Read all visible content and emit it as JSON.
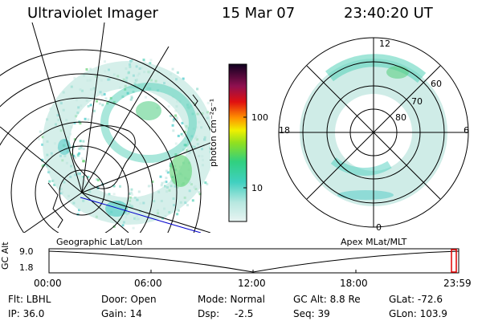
{
  "header": {
    "instrument": "Ultraviolet Imager",
    "date": "15 Mar 07",
    "time": "23:40:20 UT"
  },
  "panels": {
    "left_label": "Geographic Lat/Lon",
    "right_label": "Apex MLat/MLT"
  },
  "colorbar": {
    "unit_label": "photon cm⁻²s⁻¹",
    "ticks": [
      "100",
      "10"
    ]
  },
  "polar_plot": {
    "mlt_labels": [
      "12",
      "18",
      "6",
      "0"
    ],
    "lat_labels": [
      "60",
      "70",
      "80"
    ]
  },
  "altitude": {
    "axis_label": "GC Alt",
    "y_ticks": [
      "9.0",
      "1.8"
    ],
    "x_ticks": [
      "00:00",
      "06:00",
      "12:00",
      "18:00",
      "23:59"
    ]
  },
  "info": {
    "filter": "Flt: LBHL",
    "ip": "IP: 36.0",
    "door": "Door: Open",
    "gain": "Gain: 14",
    "mode": "Mode: Normal",
    "dsp_label": "Dsp:",
    "dsp_value": "-2.5",
    "gc_alt": "GC Alt: 8.8 Re",
    "seq": "Seq: 39",
    "glat": "GLat: -72.6",
    "glon": "GLon: 103.9"
  },
  "colors": {
    "red_marker": "#e00000",
    "blue_track": "#0000cc"
  }
}
